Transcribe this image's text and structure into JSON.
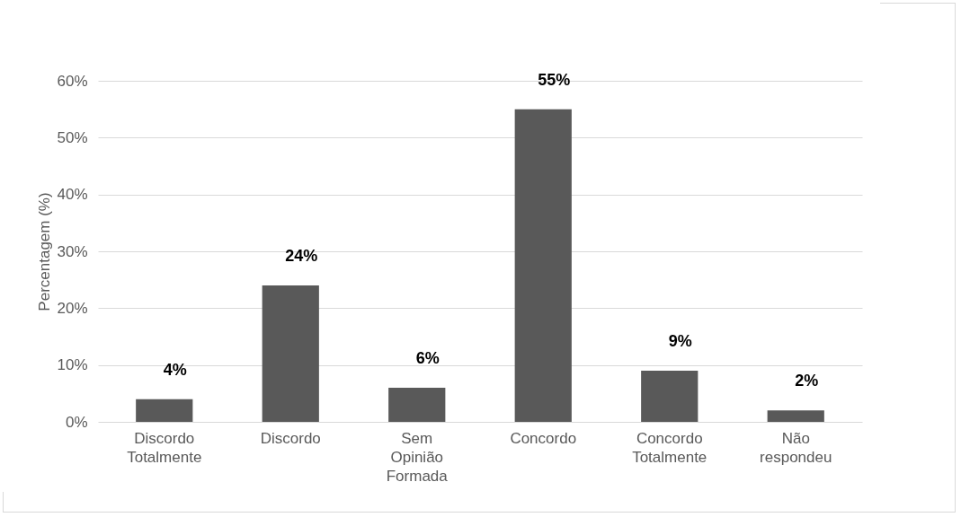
{
  "chart_data": {
    "type": "bar",
    "ylabel": "Percentagem (%)",
    "categories": [
      "Discordo Totalmente",
      "Discordo",
      "Sem Opinião Formada",
      "Concordo",
      "Concordo Totalmente",
      "Não respondeu"
    ],
    "values": [
      4,
      24,
      6,
      55,
      9,
      2
    ],
    "color": "#595959",
    "value_labels": [
      "4%",
      "24%",
      "6%",
      "55%",
      "9%",
      "2%"
    ],
    "ylim": [
      0,
      60
    ],
    "yticks": [
      {
        "value": 0,
        "label": "0%"
      },
      {
        "value": 10,
        "label": "10%"
      },
      {
        "value": 20,
        "label": "20%"
      },
      {
        "value": 30,
        "label": "30%"
      },
      {
        "value": 40,
        "label": "40%"
      },
      {
        "value": 50,
        "label": "50%"
      },
      {
        "value": 60,
        "label": "60%"
      }
    ],
    "grid": "y"
  }
}
